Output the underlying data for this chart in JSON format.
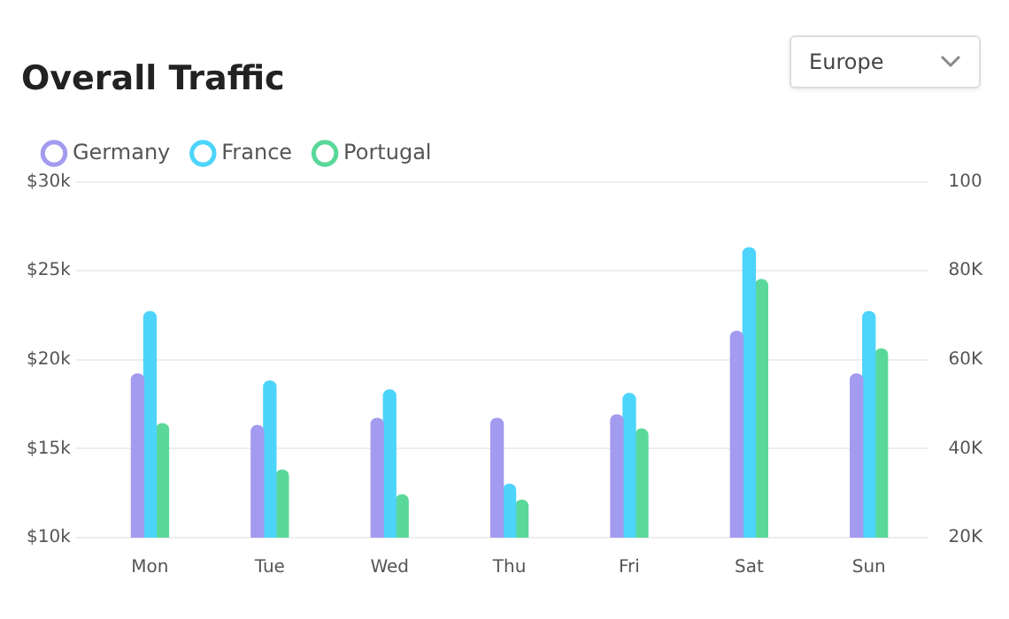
{
  "chart_data": {
    "type": "bar",
    "title": "Overall Traffic",
    "annotations": [
      "Europe"
    ],
    "categories": [
      "Mon",
      "Tue",
      "Wed",
      "Thu",
      "Fri",
      "Sat",
      "Sun"
    ],
    "series": [
      {
        "name": "Germany",
        "color": "#a29bf0",
        "values": [
          19.2,
          16.3,
          16.7,
          16.7,
          16.9,
          21.6,
          19.2
        ]
      },
      {
        "name": "France",
        "color": "#4dd4fb",
        "values": [
          22.7,
          18.8,
          18.3,
          13.0,
          18.1,
          26.3,
          22.7
        ]
      },
      {
        "name": "Portugal",
        "color": "#5ad89a",
        "values": [
          16.4,
          13.8,
          12.4,
          12.1,
          16.1,
          24.5,
          20.6
        ]
      }
    ],
    "ylim": [
      10,
      30
    ],
    "yticks": [
      {
        "value": 10,
        "label": "$10k"
      },
      {
        "value": 15,
        "label": "$15k"
      },
      {
        "value": 20,
        "label": "$20k"
      },
      {
        "value": 25,
        "label": "$25k"
      },
      {
        "value": 30,
        "label": "$30k"
      }
    ],
    "y2lim": [
      20,
      100
    ],
    "y2ticks": [
      {
        "value": 20,
        "label": "20K"
      },
      {
        "value": 40,
        "label": "40K"
      },
      {
        "value": 60,
        "label": "60K"
      },
      {
        "value": 80,
        "label": "80K"
      },
      100
    ],
    "grid": "y",
    "legend": "top left"
  }
}
